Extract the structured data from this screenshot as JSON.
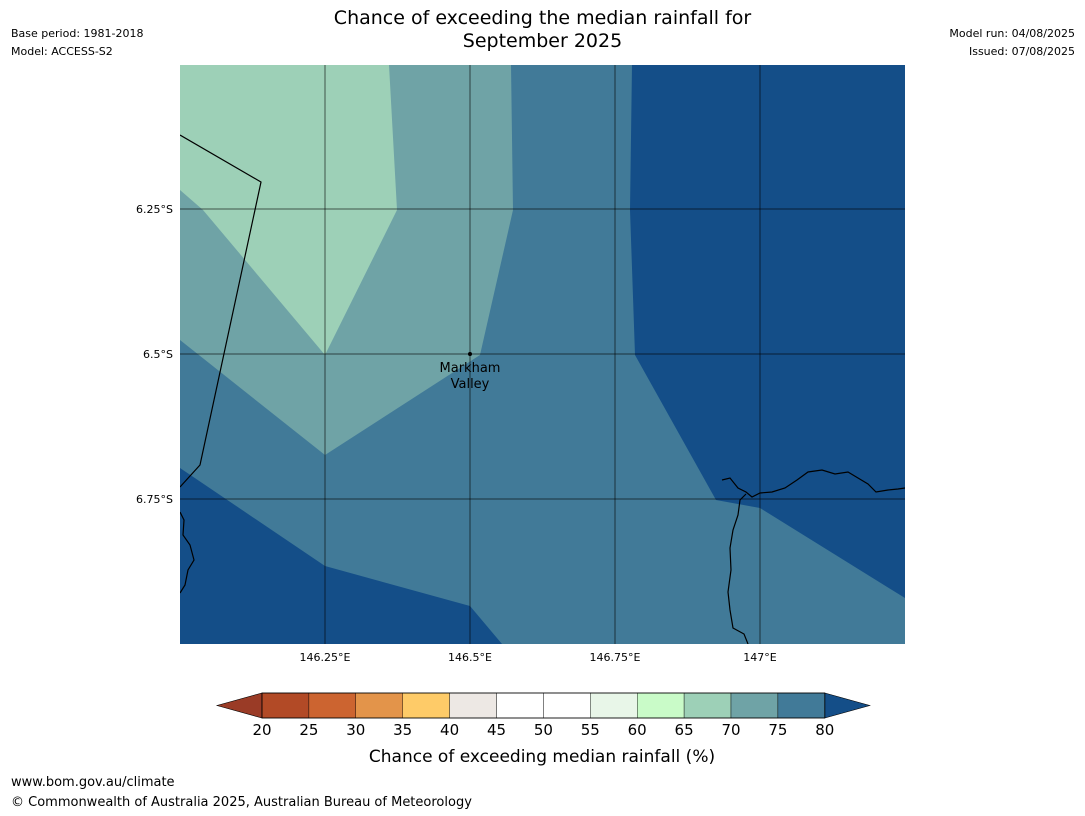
{
  "header": {
    "title_line1": "Chance of exceeding the median rainfall for",
    "title_line2": "September 2025",
    "base_period": "Base period: 1981-2018",
    "model": "Model: ACCESS-S2",
    "model_run": "Model run: 04/08/2025",
    "issued": "Issued: 07/08/2025"
  },
  "map": {
    "lat_labels": [
      "6.25°S",
      "6.5°S",
      "6.75°S"
    ],
    "lon_labels": [
      "146.25°E",
      "146.5°E",
      "146.75°E",
      "147°E"
    ],
    "place_label_line1": "Markham",
    "place_label_line2": "Valley",
    "colors": {
      "c65_70": "#9dd0b7",
      "c70_75": "#6fa3a6",
      "c75_80": "#417a98",
      "c80_plus": "#144e88"
    }
  },
  "colorbar": {
    "label": "Chance of exceeding median rainfall (%)",
    "ticks": [
      "20",
      "25",
      "30",
      "35",
      "40",
      "45",
      "50",
      "55",
      "60",
      "65",
      "70",
      "75",
      "80"
    ],
    "low_color": "#9a3b26",
    "segment_colors": [
      "#b24a26",
      "#cc6430",
      "#e3944a",
      "#fecb68",
      "#ede8e4",
      "#ffffff",
      "#ffffff",
      "#e8f6e8",
      "#c9fbc8",
      "#9dd0b7",
      "#6fa3a6",
      "#417a98"
    ],
    "high_color": "#144e88"
  },
  "footer": {
    "url": "www.bom.gov.au/climate",
    "copyright": "© Commonwealth of Australia 2025, Australian Bureau of Meteorology"
  }
}
